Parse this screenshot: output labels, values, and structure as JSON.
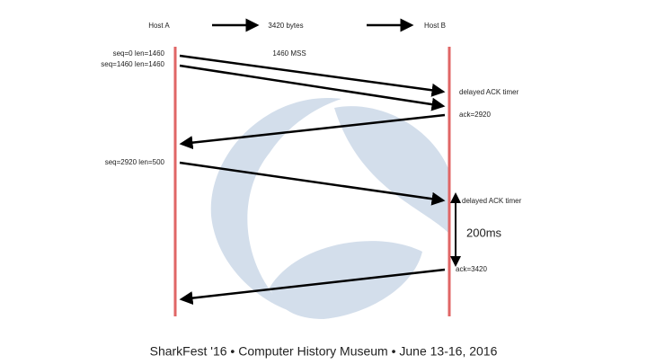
{
  "header": {
    "host_a": "Host A",
    "bytes": "3420 bytes",
    "host_b": "Host B"
  },
  "labels": {
    "mss": "1460 MSS",
    "seg1": "seq=0 len=1460",
    "seg2": "seq=1460 len=1460",
    "timer1": "delayed ACK timer",
    "ack1": "ack=2920",
    "seg3": "seq=2920 len=500",
    "timer2": "delayed ACK timer",
    "delay": "200ms",
    "ack2": "ack=3420"
  },
  "footer": "SharkFest '16 • Computer History Museum • June 13-16, 2016"
}
